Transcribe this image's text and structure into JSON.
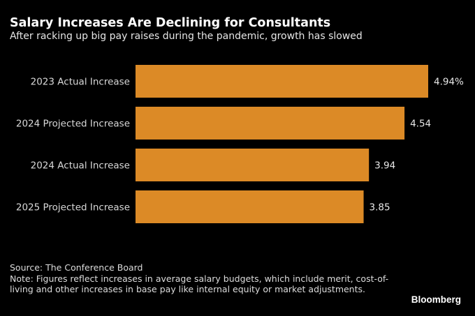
{
  "header": {
    "title": "Salary Increases Are Declining for Consultants",
    "subtitle": "After racking up big pay raises during the pandemic, growth has slowed"
  },
  "chart_data": {
    "type": "bar",
    "orientation": "horizontal",
    "title": "Salary Increases Are Declining for Consultants",
    "subtitle": "After racking up big pay raises during the pandemic, growth has slowed",
    "categories": [
      "2023 Actual Increase",
      "2024 Projected Increase",
      "2024 Actual Increase",
      "2025 Projected Increase"
    ],
    "values": [
      4.94,
      4.54,
      3.94,
      3.85
    ],
    "value_labels": [
      "4.94%",
      "4.54",
      "3.94",
      "3.85"
    ],
    "unit": "%",
    "xlabel": "",
    "ylabel": "",
    "xlim": [
      0,
      4.94
    ],
    "grid": false,
    "legend": "none",
    "bar_color": "#dc8a26"
  },
  "footer": {
    "source": "Source: The Conference Board",
    "note": "Note: Figures reflect increases in average salary budgets, which include merit, cost-of-living and other increases in base pay like internal equity or market adjustments."
  },
  "brand": "Bloomberg",
  "colors": {
    "background": "#000000",
    "bar": "#dc8a26",
    "text": "#ffffff"
  }
}
